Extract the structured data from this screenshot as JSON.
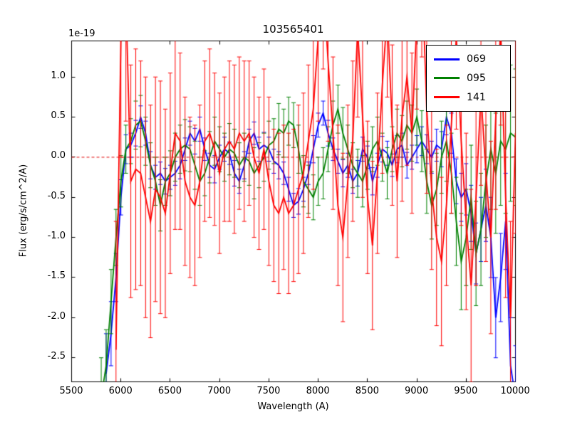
{
  "title": "103565401",
  "offset_text": "1e-19",
  "xlabel": "Wavelength (A)",
  "ylabel": "Flux (erg/s/cm^2/A)",
  "chart_data": {
    "type": "line",
    "title": "103565401",
    "xlabel": "Wavelength (A)",
    "ylabel": "Flux (erg/s/cm^2/A)",
    "y_scale_factor": "1e-19",
    "xlim": [
      5500,
      10000
    ],
    "ylim": [
      -2.8,
      1.45
    ],
    "grid": false,
    "legend_position": "upper right",
    "xticks": {
      "values": [
        5500,
        6000,
        6500,
        7000,
        7500,
        8000,
        8500,
        9000,
        9500,
        10000
      ],
      "labels": [
        "5500",
        "6000",
        "6500",
        "7000",
        "7500",
        "8000",
        "8500",
        "9000",
        "9500",
        "10000"
      ]
    },
    "yticks": {
      "values": [
        1.0,
        0.5,
        0.0,
        -0.5,
        -1.0,
        -1.5,
        -2.0,
        -2.5
      ],
      "labels": [
        "1.0",
        "0.5",
        "0.0",
        "-0.5",
        "-1.0",
        "-1.5",
        "-2.0",
        "-2.5"
      ]
    },
    "zero_line": {
      "y": 0.0,
      "color": "#e00000",
      "style": "dashed"
    },
    "series": [
      {
        "name": "069",
        "color": "#0000ff",
        "x_start": 5850,
        "x_step": 50,
        "y": [
          -2.7,
          -2.2,
          -1.5,
          -0.5,
          0.1,
          0.15,
          0.3,
          0.5,
          0.3,
          -0.1,
          -0.25,
          -0.2,
          -0.3,
          -0.25,
          -0.2,
          -0.1,
          0.1,
          0.3,
          0.2,
          0.35,
          0.1,
          -0.1,
          -0.15,
          0.0,
          0.1,
          0.05,
          -0.2,
          -0.3,
          -0.1,
          0.2,
          0.3,
          0.1,
          0.15,
          0.1,
          -0.05,
          -0.1,
          -0.2,
          -0.4,
          -0.6,
          -0.55,
          -0.4,
          -0.2,
          0.1,
          0.4,
          0.55,
          0.3,
          0.1,
          -0.05,
          -0.2,
          -0.1,
          -0.3,
          -0.2,
          0.1,
          0.0,
          -0.3,
          -0.1,
          0.1,
          0.05,
          -0.1,
          0.1,
          0.15,
          -0.1,
          0.0,
          0.1,
          0.2,
          0.1,
          0.0,
          0.15,
          0.1,
          0.5,
          0.3,
          -0.3,
          -0.5,
          -0.4,
          -0.7,
          -1.2,
          -0.9,
          -0.6,
          -1.0,
          -2.0,
          -1.5,
          -0.8,
          -2.6,
          -3.0
        ],
        "yerr": [
          0.5,
          0.4,
          0.3,
          0.22,
          0.18,
          0.15,
          0.16,
          0.14,
          0.15,
          0.17,
          0.15,
          0.14,
          0.16,
          0.15,
          0.15,
          0.17,
          0.14,
          0.15,
          0.16,
          0.15,
          0.14,
          0.15,
          0.17,
          0.15,
          0.15,
          0.14,
          0.16,
          0.15,
          0.17,
          0.15,
          0.14,
          0.15,
          0.16,
          0.15,
          0.15,
          0.17,
          0.14,
          0.15,
          0.15,
          0.16,
          0.15,
          0.14,
          0.17,
          0.15,
          0.15,
          0.16,
          0.14,
          0.15,
          0.17,
          0.15,
          0.15,
          0.16,
          0.15,
          0.14,
          0.17,
          0.15,
          0.16,
          0.15,
          0.14,
          0.17,
          0.15,
          0.16,
          0.15,
          0.17,
          0.18,
          0.18,
          0.2,
          0.2,
          0.22,
          0.22,
          0.25,
          0.28,
          0.3,
          0.32,
          0.35,
          0.38,
          0.4,
          0.45,
          0.5,
          0.5,
          0.55,
          0.6,
          0.6,
          0.65
        ]
      },
      {
        "name": "095",
        "color": "#008000",
        "x_start": 5800,
        "x_step": 50,
        "y": [
          -3.0,
          -2.6,
          -1.8,
          -1.0,
          -0.3,
          0.1,
          0.2,
          0.4,
          0.45,
          0.2,
          -0.1,
          -0.3,
          -0.6,
          -0.3,
          -0.2,
          0.0,
          0.1,
          0.15,
          0.1,
          -0.1,
          -0.3,
          -0.2,
          0.0,
          0.2,
          0.1,
          0.0,
          0.1,
          0.05,
          -0.1,
          0.0,
          -0.05,
          -0.2,
          -0.1,
          0.0,
          0.15,
          0.2,
          0.35,
          0.3,
          0.45,
          0.4,
          0.1,
          -0.3,
          -0.4,
          -0.5,
          -0.3,
          -0.2,
          0.1,
          0.4,
          0.6,
          0.3,
          0.1,
          -0.1,
          -0.2,
          -0.3,
          -0.1,
          0.1,
          0.2,
          0.0,
          -0.2,
          0.1,
          0.3,
          0.2,
          0.4,
          0.3,
          0.5,
          0.2,
          -0.3,
          -0.6,
          -0.4,
          0.0,
          0.2,
          -0.2,
          -0.8,
          -1.3,
          -1.0,
          -0.5,
          -1.2,
          -0.9,
          -0.3,
          0.1,
          -0.2,
          0.2,
          0.1,
          0.3,
          0.25
        ],
        "yerr": [
          0.5,
          0.45,
          0.4,
          0.35,
          0.32,
          0.3,
          0.28,
          0.3,
          0.32,
          0.3,
          0.28,
          0.3,
          0.32,
          0.3,
          0.28,
          0.3,
          0.3,
          0.32,
          0.28,
          0.3,
          0.3,
          0.28,
          0.32,
          0.3,
          0.28,
          0.3,
          0.32,
          0.3,
          0.28,
          0.3,
          0.3,
          0.32,
          0.28,
          0.3,
          0.3,
          0.28,
          0.32,
          0.3,
          0.3,
          0.28,
          0.3,
          0.32,
          0.3,
          0.28,
          0.3,
          0.32,
          0.28,
          0.3,
          0.3,
          0.32,
          0.3,
          0.28,
          0.3,
          0.32,
          0.3,
          0.28,
          0.3,
          0.3,
          0.32,
          0.28,
          0.3,
          0.32,
          0.3,
          0.35,
          0.35,
          0.38,
          0.4,
          0.42,
          0.45,
          0.45,
          0.5,
          0.5,
          0.55,
          0.6,
          0.6,
          0.65,
          0.65,
          0.7,
          0.7,
          0.75,
          0.75,
          0.8,
          0.8,
          0.85,
          0.85
        ]
      },
      {
        "name": "141",
        "color": "#ff0000",
        "x_start": 5950,
        "x_step": 50,
        "y": [
          -2.4,
          1.5,
          2.0,
          -0.3,
          -0.15,
          -0.2,
          -0.5,
          -0.8,
          -0.4,
          -0.5,
          -0.7,
          -0.2,
          0.3,
          0.2,
          -0.3,
          -0.5,
          -0.6,
          -0.3,
          0.2,
          0.3,
          0.1,
          -0.2,
          0.1,
          0.2,
          0.1,
          0.3,
          0.2,
          0.3,
          0.0,
          -0.2,
          0.1,
          -0.3,
          -0.6,
          -0.7,
          -0.5,
          -0.7,
          -0.6,
          -0.4,
          -0.2,
          0.2,
          0.6,
          1.5,
          2.2,
          1.2,
          0.3,
          -0.6,
          -1.0,
          -0.3,
          0.2,
          1.6,
          0.5,
          -0.5,
          -1.1,
          -0.2,
          0.9,
          1.8,
          0.4,
          -0.3,
          0.5,
          1.0,
          0.3,
          1.7,
          2.4,
          0.6,
          -0.4,
          -1.0,
          -1.3,
          -0.6,
          0.4,
          1.5,
          0.2,
          -0.8,
          -1.6,
          -0.5,
          0.8,
          -0.2,
          -1.0,
          0.5,
          1.6,
          -0.5,
          -2.0,
          0.3
        ],
        "yerr": [
          1.6,
          1.5,
          1.55,
          1.45,
          1.5,
          1.4,
          1.5,
          1.45,
          1.4,
          1.45,
          1.3,
          1.25,
          1.2,
          1.1,
          1.05,
          1.0,
          1.0,
          0.95,
          1.0,
          1.05,
          0.95,
          1.0,
          0.9,
          1.0,
          1.05,
          0.95,
          1.0,
          0.9,
          1.0,
          0.95,
          1.0,
          1.05,
          0.95,
          1.0,
          0.9,
          1.0,
          0.95,
          1.05,
          1.0,
          0.95,
          1.0,
          1.05,
          1.1,
          1.0,
          0.95,
          1.0,
          1.05,
          0.95,
          1.0,
          1.1,
          1.0,
          0.95,
          1.05,
          1.0,
          1.1,
          1.05,
          1.0,
          0.95,
          1.05,
          1.1,
          1.0,
          1.1,
          1.15,
          1.05,
          1.0,
          1.1,
          1.05,
          1.0,
          1.1,
          1.15,
          1.05,
          1.1,
          1.2,
          1.1,
          1.15,
          1.1,
          1.2,
          1.15,
          1.2,
          1.25,
          1.2,
          1.25
        ]
      }
    ]
  }
}
